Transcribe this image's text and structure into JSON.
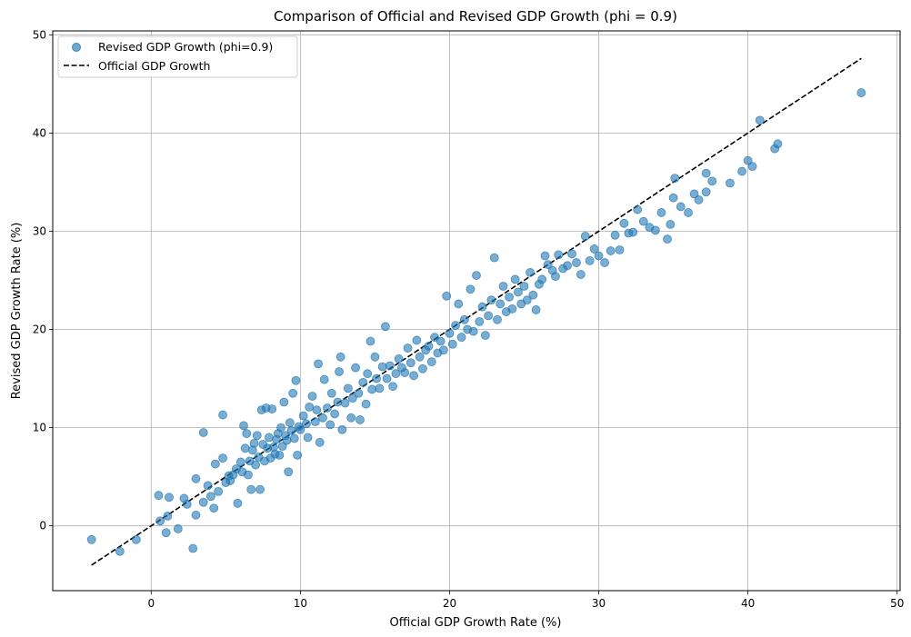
{
  "chart_data": {
    "type": "scatter",
    "title": "Comparison of Official and Revised GDP Growth (phi = 0.9)",
    "xlabel": "Official GDP Growth Rate (%)",
    "ylabel": "Revised GDP Growth Rate (%)",
    "xlim": [
      -6.6,
      50.2
    ],
    "ylim": [
      -6.6,
      50.4
    ],
    "xticks": [
      0,
      10,
      20,
      30,
      40,
      50
    ],
    "yticks": [
      0,
      10,
      20,
      30,
      40,
      50
    ],
    "grid": true,
    "legend_position": "top-left",
    "colors": {
      "scatter": "#1f77b4",
      "line": "#000000"
    },
    "series": [
      {
        "name": "Revised GDP Growth (phi=0.9)",
        "type": "scatter",
        "points": [
          [
            -4.0,
            -1.4
          ],
          [
            -2.1,
            -2.6
          ],
          [
            -1.0,
            -1.4
          ],
          [
            0.5,
            3.1
          ],
          [
            0.6,
            0.5
          ],
          [
            1.0,
            -0.7
          ],
          [
            1.1,
            1.0
          ],
          [
            1.2,
            2.9
          ],
          [
            1.8,
            -0.3
          ],
          [
            2.2,
            2.8
          ],
          [
            2.4,
            2.2
          ],
          [
            2.8,
            -2.3
          ],
          [
            3.0,
            1.1
          ],
          [
            3.0,
            4.8
          ],
          [
            3.5,
            2.4
          ],
          [
            3.5,
            9.5
          ],
          [
            3.8,
            4.1
          ],
          [
            4.0,
            3.0
          ],
          [
            4.2,
            1.8
          ],
          [
            4.3,
            6.3
          ],
          [
            4.5,
            3.5
          ],
          [
            4.8,
            11.3
          ],
          [
            4.8,
            6.9
          ],
          [
            5.0,
            4.4
          ],
          [
            5.2,
            5.1
          ],
          [
            5.3,
            4.6
          ],
          [
            5.5,
            5.2
          ],
          [
            5.7,
            5.8
          ],
          [
            5.8,
            2.3
          ],
          [
            6.0,
            6.5
          ],
          [
            6.1,
            5.5
          ],
          [
            6.2,
            10.2
          ],
          [
            6.3,
            7.9
          ],
          [
            6.4,
            9.4
          ],
          [
            6.5,
            5.2
          ],
          [
            6.6,
            6.6
          ],
          [
            6.7,
            3.7
          ],
          [
            6.8,
            7.7
          ],
          [
            6.9,
            8.4
          ],
          [
            7.0,
            6.2
          ],
          [
            7.1,
            9.2
          ],
          [
            7.2,
            7.0
          ],
          [
            7.3,
            3.7
          ],
          [
            7.4,
            11.8
          ],
          [
            7.5,
            8.3
          ],
          [
            7.6,
            6.6
          ],
          [
            7.7,
            12.0
          ],
          [
            7.8,
            7.9
          ],
          [
            7.9,
            9.0
          ],
          [
            8.0,
            6.9
          ],
          [
            8.1,
            11.9
          ],
          [
            8.2,
            8.0
          ],
          [
            8.3,
            7.3
          ],
          [
            8.4,
            8.8
          ],
          [
            8.5,
            9.4
          ],
          [
            8.6,
            7.2
          ],
          [
            8.7,
            10.0
          ],
          [
            8.8,
            8.1
          ],
          [
            8.9,
            12.6
          ],
          [
            9.0,
            9.2
          ],
          [
            9.1,
            8.7
          ],
          [
            9.2,
            5.5
          ],
          [
            9.3,
            10.5
          ],
          [
            9.4,
            9.7
          ],
          [
            9.5,
            13.5
          ],
          [
            9.6,
            8.9
          ],
          [
            9.7,
            14.8
          ],
          [
            9.8,
            7.2
          ],
          [
            9.9,
            10.1
          ],
          [
            10.0,
            9.8
          ],
          [
            10.2,
            11.2
          ],
          [
            10.4,
            10.4
          ],
          [
            10.5,
            9.0
          ],
          [
            10.6,
            12.1
          ],
          [
            10.8,
            13.2
          ],
          [
            11.0,
            10.6
          ],
          [
            11.1,
            11.8
          ],
          [
            11.2,
            16.5
          ],
          [
            11.3,
            8.5
          ],
          [
            11.5,
            11.0
          ],
          [
            11.6,
            14.9
          ],
          [
            11.8,
            12.0
          ],
          [
            12.0,
            10.3
          ],
          [
            12.1,
            13.5
          ],
          [
            12.3,
            11.4
          ],
          [
            12.5,
            12.6
          ],
          [
            12.6,
            15.7
          ],
          [
            12.7,
            17.2
          ],
          [
            12.8,
            9.8
          ],
          [
            13.0,
            12.5
          ],
          [
            13.2,
            14.0
          ],
          [
            13.4,
            11.0
          ],
          [
            13.5,
            13.0
          ],
          [
            13.7,
            16.1
          ],
          [
            13.9,
            13.5
          ],
          [
            14.0,
            10.8
          ],
          [
            14.2,
            14.6
          ],
          [
            14.4,
            12.4
          ],
          [
            14.5,
            15.5
          ],
          [
            14.7,
            18.8
          ],
          [
            14.8,
            13.9
          ],
          [
            15.0,
            17.2
          ],
          [
            15.1,
            15.0
          ],
          [
            15.3,
            14.0
          ],
          [
            15.5,
            16.2
          ],
          [
            15.7,
            20.3
          ],
          [
            15.8,
            15.0
          ],
          [
            16.0,
            16.3
          ],
          [
            16.2,
            14.2
          ],
          [
            16.4,
            15.5
          ],
          [
            16.6,
            17.0
          ],
          [
            16.8,
            16.1
          ],
          [
            17.0,
            15.6
          ],
          [
            17.2,
            18.1
          ],
          [
            17.4,
            16.6
          ],
          [
            17.6,
            15.3
          ],
          [
            17.8,
            18.9
          ],
          [
            18.0,
            17.2
          ],
          [
            18.2,
            16.0
          ],
          [
            18.4,
            17.9
          ],
          [
            18.6,
            18.3
          ],
          [
            18.8,
            16.7
          ],
          [
            19.0,
            19.2
          ],
          [
            19.2,
            17.6
          ],
          [
            19.4,
            18.8
          ],
          [
            19.6,
            17.9
          ],
          [
            19.8,
            23.4
          ],
          [
            20.0,
            19.6
          ],
          [
            20.2,
            18.5
          ],
          [
            20.4,
            20.4
          ],
          [
            20.6,
            22.6
          ],
          [
            20.8,
            19.2
          ],
          [
            21.0,
            21.0
          ],
          [
            21.2,
            20.0
          ],
          [
            21.4,
            24.1
          ],
          [
            21.6,
            19.8
          ],
          [
            21.8,
            25.5
          ],
          [
            22.0,
            20.8
          ],
          [
            22.2,
            22.3
          ],
          [
            22.4,
            19.4
          ],
          [
            22.6,
            21.4
          ],
          [
            22.8,
            23.0
          ],
          [
            23.0,
            27.3
          ],
          [
            23.2,
            21.0
          ],
          [
            23.4,
            22.6
          ],
          [
            23.6,
            24.4
          ],
          [
            23.8,
            21.8
          ],
          [
            24.0,
            23.3
          ],
          [
            24.2,
            22.1
          ],
          [
            24.4,
            25.1
          ],
          [
            24.6,
            23.8
          ],
          [
            24.8,
            22.6
          ],
          [
            25.0,
            24.4
          ],
          [
            25.2,
            23.0
          ],
          [
            25.4,
            25.8
          ],
          [
            25.6,
            23.5
          ],
          [
            25.8,
            22.0
          ],
          [
            26.0,
            24.6
          ],
          [
            26.2,
            25.1
          ],
          [
            26.4,
            27.5
          ],
          [
            26.6,
            26.6
          ],
          [
            26.9,
            26.0
          ],
          [
            27.1,
            25.4
          ],
          [
            27.3,
            27.6
          ],
          [
            27.6,
            26.2
          ],
          [
            27.9,
            26.5
          ],
          [
            28.2,
            27.7
          ],
          [
            28.5,
            26.8
          ],
          [
            28.8,
            25.6
          ],
          [
            29.1,
            29.5
          ],
          [
            29.4,
            27.0
          ],
          [
            29.7,
            28.2
          ],
          [
            30.0,
            27.5
          ],
          [
            30.4,
            26.8
          ],
          [
            30.8,
            28.0
          ],
          [
            31.1,
            29.6
          ],
          [
            31.4,
            28.1
          ],
          [
            31.7,
            30.8
          ],
          [
            32.0,
            29.8
          ],
          [
            32.3,
            29.9
          ],
          [
            32.6,
            32.2
          ],
          [
            33.0,
            31.0
          ],
          [
            33.4,
            30.4
          ],
          [
            33.8,
            30.1
          ],
          [
            34.2,
            31.9
          ],
          [
            34.6,
            29.2
          ],
          [
            34.8,
            30.7
          ],
          [
            35.0,
            33.4
          ],
          [
            35.1,
            35.4
          ],
          [
            35.5,
            32.5
          ],
          [
            36.0,
            31.9
          ],
          [
            36.4,
            33.8
          ],
          [
            36.7,
            33.2
          ],
          [
            37.2,
            34.0
          ],
          [
            37.2,
            35.9
          ],
          [
            37.6,
            35.1
          ],
          [
            38.8,
            34.9
          ],
          [
            39.6,
            36.1
          ],
          [
            40.0,
            37.2
          ],
          [
            40.3,
            36.6
          ],
          [
            40.8,
            41.3
          ],
          [
            41.8,
            38.4
          ],
          [
            42.0,
            38.9
          ],
          [
            47.6,
            44.1
          ]
        ]
      },
      {
        "name": "Official GDP Growth",
        "type": "line",
        "style": "dashed",
        "points": [
          [
            -4.0,
            -4.0
          ],
          [
            47.6,
            47.6
          ]
        ]
      }
    ]
  }
}
